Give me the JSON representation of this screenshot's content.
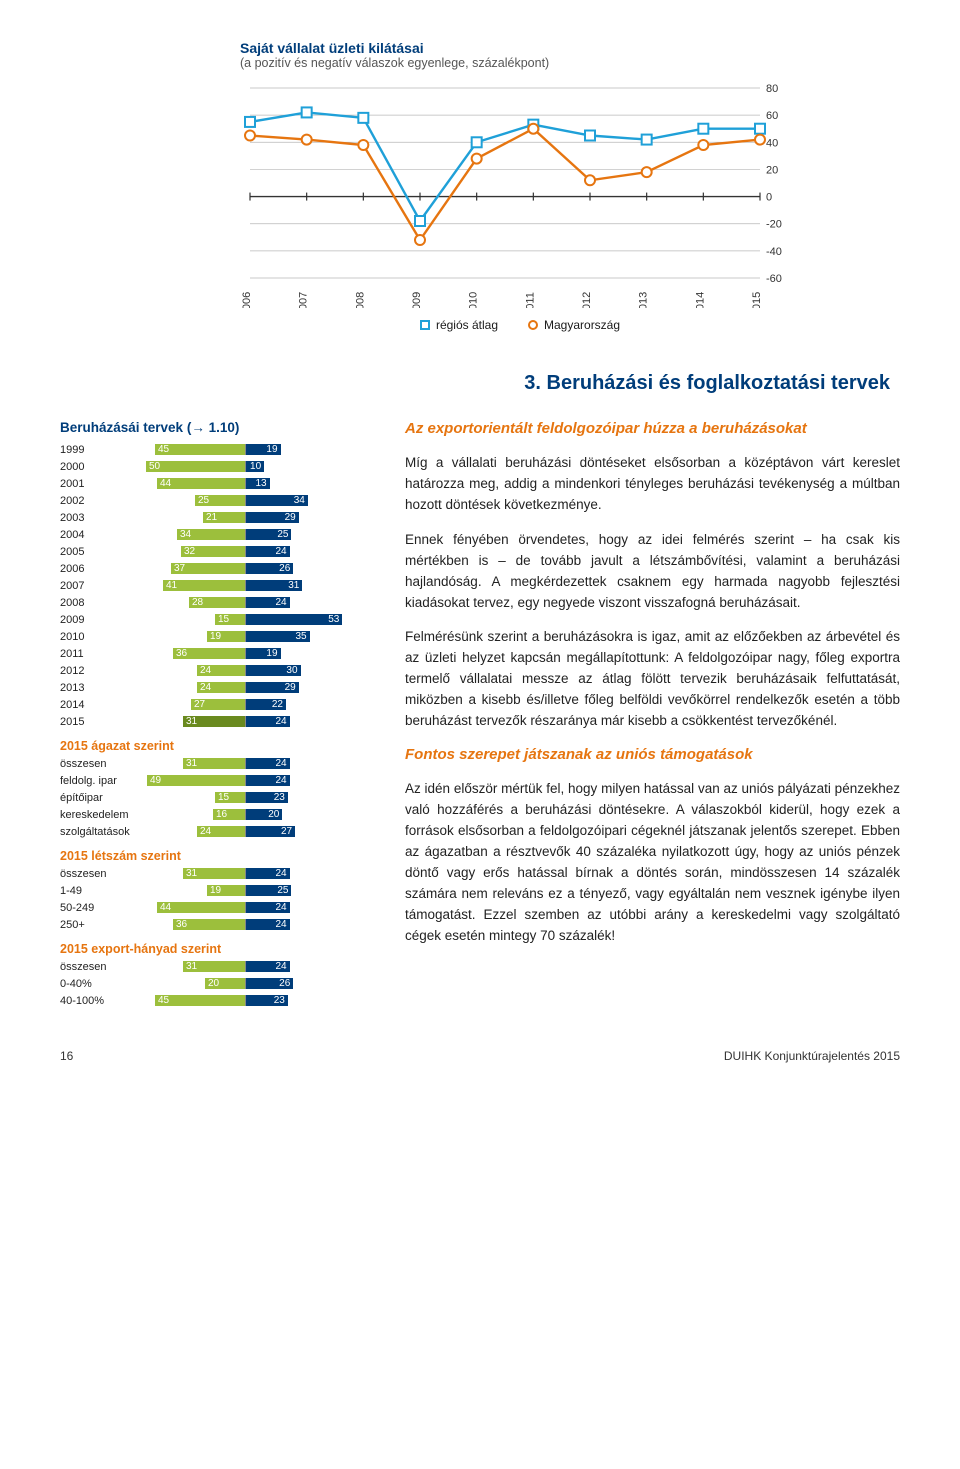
{
  "lineChart": {
    "title": "Saját vállalat üzleti kilátásai",
    "subtitle": "(a pozitív és negatív válaszok egyenlege, százalékpont)",
    "type": "line",
    "xLabels": [
      "2006",
      "2007",
      "2008",
      "2009",
      "2010",
      "2011",
      "2012",
      "2013",
      "2014",
      "2015"
    ],
    "yTicks": [
      80,
      60,
      40,
      20,
      0,
      -20,
      -40,
      -60
    ],
    "ylim": [
      -60,
      80
    ],
    "series": [
      {
        "name": "régiós átlag",
        "marker": "square",
        "color": "#1fa0d8",
        "values": [
          55,
          62,
          58,
          -18,
          40,
          53,
          45,
          42,
          50,
          50
        ]
      },
      {
        "name": "Magyarország",
        "marker": "circle",
        "color": "#e67510",
        "values": [
          45,
          42,
          38,
          -32,
          28,
          50,
          12,
          18,
          38,
          42
        ]
      }
    ],
    "axisColor": "#555",
    "gridColor": "#b8b8b8",
    "bg": "#ffffff"
  },
  "sectionHeading": "3. Beruházási és foglalkoztatási tervek",
  "sidebar": {
    "title": "Beruházásái tervek (→ 1.10)",
    "maxLeft": 50,
    "maxRight": 55,
    "leftColor": "#9cbf3c",
    "leftHighlight": "#6a8a1f",
    "rightColor": "#003d7a",
    "years": [
      {
        "label": "1999",
        "l": 45,
        "r": 19
      },
      {
        "label": "2000",
        "l": 50,
        "r": 10
      },
      {
        "label": "2001",
        "l": 44,
        "r": 13
      },
      {
        "label": "2002",
        "l": 25,
        "r": 34
      },
      {
        "label": "2003",
        "l": 21,
        "r": 29
      },
      {
        "label": "2004",
        "l": 34,
        "r": 25
      },
      {
        "label": "2005",
        "l": 32,
        "r": 24
      },
      {
        "label": "2006",
        "l": 37,
        "r": 26
      },
      {
        "label": "2007",
        "l": 41,
        "r": 31
      },
      {
        "label": "2008",
        "l": 28,
        "r": 24
      },
      {
        "label": "2009",
        "l": 15,
        "r": 53
      },
      {
        "label": "2010",
        "l": 19,
        "r": 35
      },
      {
        "label": "2011",
        "l": 36,
        "r": 19
      },
      {
        "label": "2012",
        "l": 24,
        "r": 30
      },
      {
        "label": "2013",
        "l": 24,
        "r": 29
      },
      {
        "label": "2014",
        "l": 27,
        "r": 22
      },
      {
        "label": "2015",
        "l": 31,
        "r": 24,
        "hl": true
      }
    ],
    "groups": [
      {
        "title": "2015 ágazat szerint",
        "rows": [
          {
            "label": "összesen",
            "l": 31,
            "r": 24
          },
          {
            "label": "feldolg. ipar",
            "l": 49,
            "r": 24
          },
          {
            "label": "építőipar",
            "l": 15,
            "r": 23
          },
          {
            "label": "kereskedelem",
            "l": 16,
            "r": 20
          },
          {
            "label": "szolgáltatások",
            "l": 24,
            "r": 27
          }
        ]
      },
      {
        "title": "2015 létszám szerint",
        "rows": [
          {
            "label": "összesen",
            "l": 31,
            "r": 24
          },
          {
            "label": "1-49",
            "l": 19,
            "r": 25
          },
          {
            "label": "50-249",
            "l": 44,
            "r": 24
          },
          {
            "label": "250+",
            "l": 36,
            "r": 24
          }
        ]
      },
      {
        "title": "2015 export-hányad szerint",
        "rows": [
          {
            "label": "összesen",
            "l": 31,
            "r": 24
          },
          {
            "label": "0-40%",
            "l": 20,
            "r": 26
          },
          {
            "label": "40-100%",
            "l": 45,
            "r": 23
          }
        ]
      }
    ]
  },
  "body": {
    "h1": "Az exportorientált feldolgozóipar húzza a beruházásokat",
    "p1": "Míg a vállalati beruházási döntéseket elsősorban a középtávon várt kereslet határozza meg, addig a mindenkori tényleges beruházási tevékenység a múltban hozott döntések következménye.",
    "p2": "Ennek fényében örvendetes, hogy az idei felmérés szerint – ha csak kis mértékben is – de tovább javult a létszámbővítési, valamint a beruházási hajlandóság. A megkérdezettek csaknem egy harmada nagyobb fejlesztési kiadásokat tervez, egy negyede viszont visszafogná beruházásait.",
    "p3": "Felmérésünk szerint a beruházásokra is igaz, amit az előzőekben az árbevétel és az üzleti helyzet kapcsán megállapítottunk: A feldolgozóipar nagy, főleg exportra termelő vállalatai messze az átlag fölött tervezik beruházásaik felfuttatását, miközben a kisebb és/illetve főleg belföldi vevőkörrel rendelkezők esetén a több beruházást tervezők részaránya már kisebb a csökkentést tervezőkénél.",
    "h2": "Fontos szerepet játszanak az uniós támogatások",
    "p4": "Az idén először mértük fel, hogy milyen hatással van az uniós pályázati pénzekhez való hozzáférés a beruházási döntésekre. A válaszokból kiderül, hogy ezek a források elsősorban a feldolgozóipari cégeknél játszanak jelentős szerepet. Ebben az ágazatban a résztvevők 40 százaléka nyilatkozott úgy, hogy az uniós pénzek döntő vagy erős hatással bírnak a döntés során, mindösszesen 14 százalék számára nem releváns ez a tényező, vagy egyáltalán nem vesznek igénybe ilyen támogatást. Ezzel szemben az utóbbi arány a kereskedelmi vagy szolgáltató cégek esetén mintegy 70 százalék!"
  },
  "footer": {
    "page": "16",
    "doc": "DUIHK Konjunktúrajelentés 2015"
  }
}
